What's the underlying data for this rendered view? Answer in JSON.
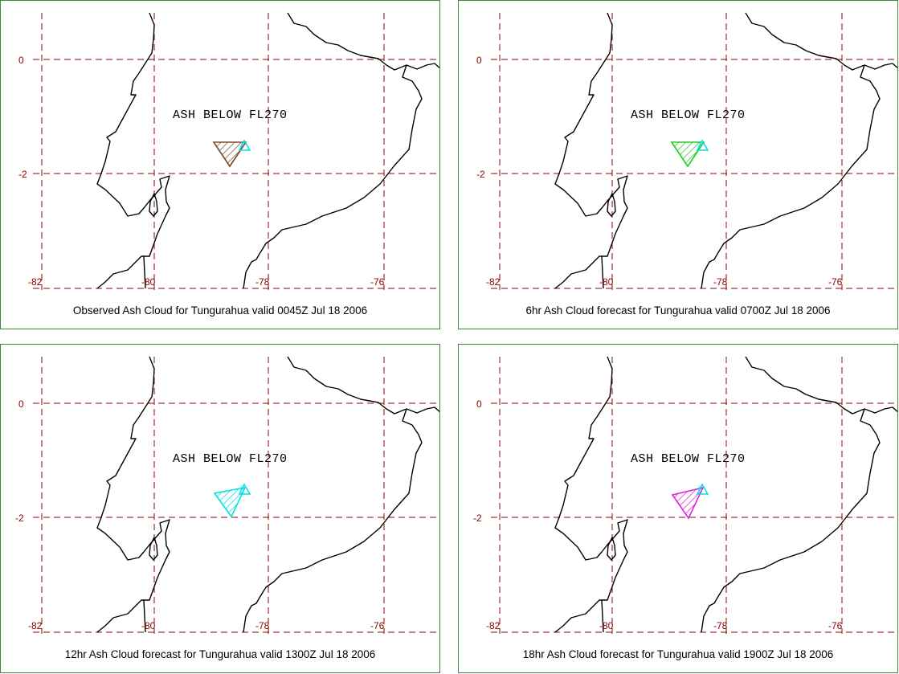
{
  "axes": {
    "lon_ticks": [
      "-82",
      "-80",
      "-78",
      "-76"
    ],
    "lat_ticks": [
      "0",
      "-2"
    ]
  },
  "colors": {
    "grid": "#8b0000",
    "frame": "#3a8a3a",
    "vent": "#00e0e0"
  },
  "panels": [
    {
      "ash_label": "ASH BELOW FL270",
      "caption": "Observed Ash Cloud for Tungurahua valid 0045Z Jul 18 2006",
      "cloud_color": "#7a4a2a",
      "cloud_lonlat": [
        [
          -79.2,
          -1.45
        ],
        [
          -78.4,
          -1.45
        ],
        [
          -78.95,
          -1.85
        ]
      ]
    },
    {
      "ash_label": "ASH BELOW FL270",
      "caption": "6hr Ash Cloud forecast for Tungurahua valid 0700Z Jul 18 2006",
      "cloud_color": "#22cc22",
      "cloud_lonlat": [
        [
          -79.2,
          -1.45
        ],
        [
          -78.4,
          -1.45
        ],
        [
          -78.95,
          -1.85
        ]
      ]
    },
    {
      "ash_label": "ASH BELOW FL270",
      "caption": "12hr Ash Cloud forecast for Tungurahua valid 1300Z Jul 18 2006",
      "cloud_color": "#00e0e0",
      "cloud_lonlat": [
        [
          -79.25,
          -1.6
        ],
        [
          -78.4,
          -1.45
        ],
        [
          -78.95,
          -1.95
        ]
      ]
    },
    {
      "ash_label": "ASH BELOW FL270",
      "caption": "18hr Ash Cloud forecast for Tungurahua valid 1900Z Jul 18 2006",
      "cloud_color": "#dd22dd",
      "cloud_lonlat": [
        [
          -79.2,
          -1.6
        ],
        [
          -78.4,
          -1.45
        ],
        [
          -78.95,
          -2.0
        ]
      ]
    }
  ]
}
